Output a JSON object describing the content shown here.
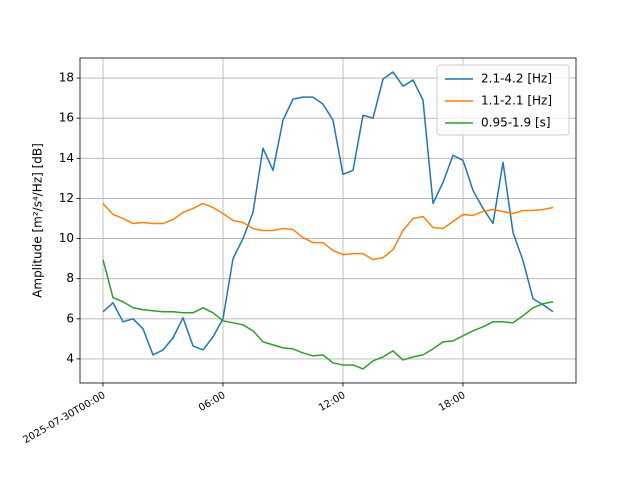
{
  "chart_data": {
    "type": "line",
    "ylabel": "Amplitude [m²/s⁴/Hz] [dB]",
    "x": [
      "2025-07-30T00:00",
      "2025-07-30T00:30",
      "2025-07-30T01:00",
      "2025-07-30T01:30",
      "2025-07-30T02:00",
      "2025-07-30T02:30",
      "2025-07-30T03:00",
      "2025-07-30T03:30",
      "2025-07-30T04:00",
      "2025-07-30T04:30",
      "2025-07-30T05:00",
      "2025-07-30T05:30",
      "2025-07-30T06:00",
      "2025-07-30T06:30",
      "2025-07-30T07:00",
      "2025-07-30T07:30",
      "2025-07-30T08:00",
      "2025-07-30T08:30",
      "2025-07-30T09:00",
      "2025-07-30T09:30",
      "2025-07-30T10:00",
      "2025-07-30T10:30",
      "2025-07-30T11:00",
      "2025-07-30T11:30",
      "2025-07-30T12:00",
      "2025-07-30T12:30",
      "2025-07-30T13:00",
      "2025-07-30T13:30",
      "2025-07-30T14:00",
      "2025-07-30T14:30",
      "2025-07-30T15:00",
      "2025-07-30T15:30",
      "2025-07-30T16:00",
      "2025-07-30T16:30",
      "2025-07-30T17:00",
      "2025-07-30T17:30",
      "2025-07-30T18:00",
      "2025-07-30T18:30",
      "2025-07-30T19:00",
      "2025-07-30T19:30",
      "2025-07-30T20:00",
      "2025-07-30T20:30",
      "2025-07-30T21:00",
      "2025-07-30T21:30",
      "2025-07-30T22:00",
      "2025-07-30T22:30"
    ],
    "series": [
      {
        "name": "2.1-4.2 [Hz]",
        "color": "#1f77b4",
        "values": [
          6.35,
          6.8,
          5.85,
          6.0,
          5.5,
          4.2,
          4.45,
          5.05,
          6.05,
          4.65,
          4.45,
          5.1,
          6.0,
          9.0,
          10.0,
          11.3,
          14.5,
          13.4,
          15.9,
          16.95,
          17.05,
          17.05,
          16.7,
          15.9,
          13.2,
          13.4,
          16.15,
          16.0,
          17.95,
          18.3,
          17.6,
          17.9,
          16.9,
          11.75,
          12.8,
          14.15,
          13.9,
          12.4,
          11.5,
          10.75,
          13.8,
          10.3,
          8.9,
          7.0,
          6.7,
          6.35
        ]
      },
      {
        "name": "1.1-2.1 [Hz]",
        "color": "#ff7f0e",
        "values": [
          11.75,
          11.2,
          11.0,
          10.75,
          10.8,
          10.75,
          10.75,
          10.95,
          11.3,
          11.5,
          11.75,
          11.55,
          11.25,
          10.9,
          10.8,
          10.5,
          10.4,
          10.4,
          10.5,
          10.45,
          10.05,
          9.8,
          9.8,
          9.4,
          9.2,
          9.25,
          9.25,
          8.95,
          9.05,
          9.45,
          10.4,
          11.0,
          11.1,
          10.55,
          10.5,
          10.85,
          11.2,
          11.15,
          11.35,
          11.45,
          11.35,
          11.25,
          11.4,
          11.4,
          11.45,
          11.55
        ]
      },
      {
        "name": "0.95-1.9 [s]",
        "color": "#2ca02c",
        "values": [
          8.95,
          7.05,
          6.85,
          6.55,
          6.45,
          6.4,
          6.35,
          6.35,
          6.3,
          6.3,
          6.55,
          6.3,
          5.9,
          5.8,
          5.7,
          5.4,
          4.85,
          4.7,
          4.55,
          4.5,
          4.3,
          4.15,
          4.2,
          3.8,
          3.7,
          3.7,
          3.5,
          3.9,
          4.1,
          4.4,
          3.95,
          4.1,
          4.2,
          4.5,
          4.85,
          4.9,
          5.15,
          5.4,
          5.6,
          5.85,
          5.85,
          5.8,
          6.15,
          6.55,
          6.75,
          6.85
        ]
      }
    ],
    "xlim": [
      "2025-07-29T22:51",
      "2025-07-30T23:39"
    ],
    "xticks": [
      "2025-07-30T00:00",
      {
        "value": "2025-07-30T06:00",
        "label": "06:00"
      },
      {
        "value": "2025-07-30T12:00",
        "label": "12:00"
      },
      {
        "value": "2025-07-30T18:00",
        "label": "18:00"
      }
    ],
    "ylim": [
      2.8,
      19.0
    ],
    "yticks": [
      4,
      6,
      8,
      10,
      12,
      14,
      16,
      18
    ],
    "grid": true,
    "legend": "upper right"
  }
}
